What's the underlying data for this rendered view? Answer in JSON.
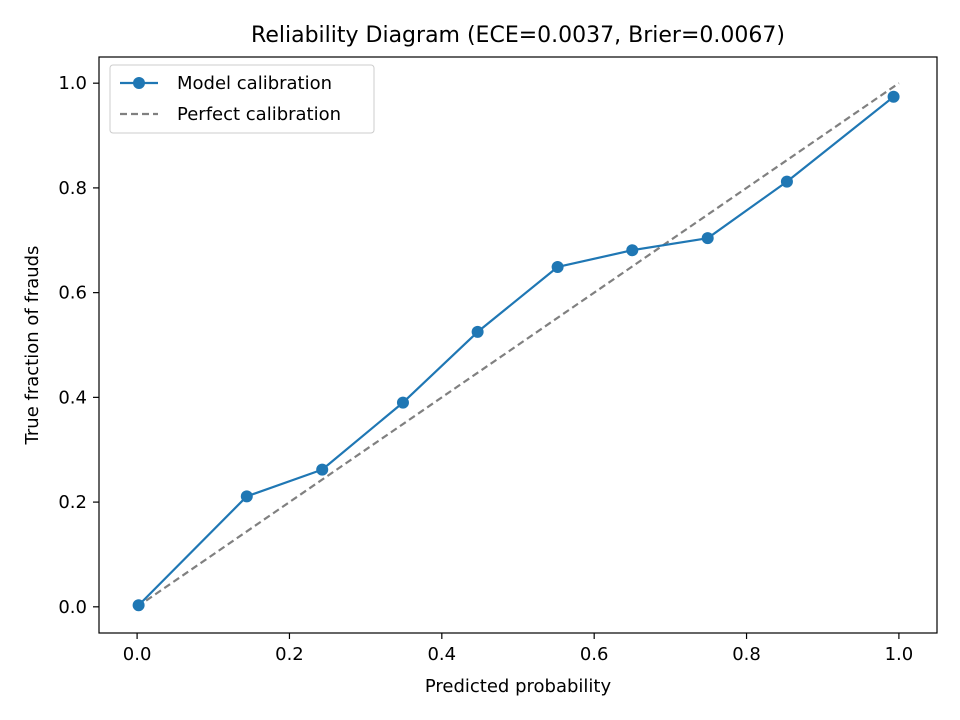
{
  "chart_data": {
    "type": "line",
    "title": "Reliability Diagram (ECE=0.0037, Brier=0.0067)",
    "xlabel": "Predicted probability",
    "ylabel": "True fraction of frauds",
    "xlim": [
      -0.05,
      1.05
    ],
    "ylim": [
      -0.05,
      1.05
    ],
    "xticks": [
      "0.0",
      "0.2",
      "0.4",
      "0.6",
      "0.8",
      "1.0"
    ],
    "yticks": [
      "0.0",
      "0.2",
      "0.4",
      "0.6",
      "0.8",
      "1.0"
    ],
    "legend_position": "upper-left",
    "grid": false,
    "series": [
      {
        "name": "Model calibration",
        "style": "solid-with-markers",
        "color": "#1f77b4",
        "x": [
          0.002,
          0.144,
          0.243,
          0.349,
          0.447,
          0.552,
          0.65,
          0.749,
          0.853,
          0.993
        ],
        "y": [
          0.003,
          0.211,
          0.262,
          0.39,
          0.525,
          0.649,
          0.681,
          0.704,
          0.812,
          0.974
        ]
      },
      {
        "name": "Perfect calibration",
        "style": "dashed",
        "color": "#808080",
        "x": [
          0,
          1
        ],
        "y": [
          0,
          1
        ]
      }
    ]
  }
}
